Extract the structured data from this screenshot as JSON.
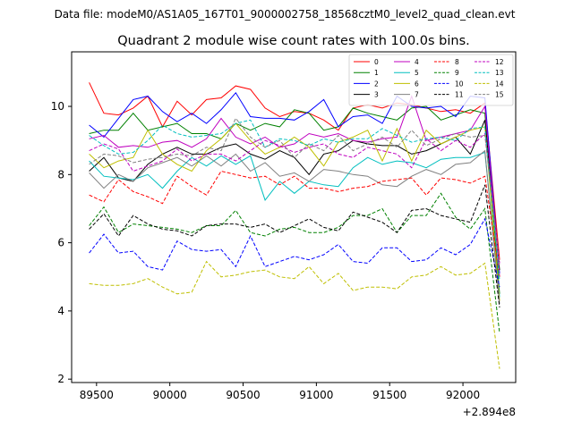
{
  "file_label": "Data file: modeM0/AS1A05_167T01_9000002758_18568cztM0_level2_quad_clean.evt",
  "chart_data": {
    "type": "line",
    "title": "Quadrant 2 module wise count rates with 100.0s bins.",
    "xlabel": "",
    "ylabel": "",
    "x_offset_label": "+2.894e8",
    "xlim": [
      89330,
      92360
    ],
    "ylim": [
      1.9,
      11.6
    ],
    "xticks": [
      89500,
      90000,
      90500,
      91000,
      91500,
      92000
    ],
    "yticks": [
      2,
      4,
      6,
      8,
      10
    ],
    "grid": false,
    "legend_position": "top-right",
    "x": [
      89450,
      89550,
      89650,
      89750,
      89850,
      89950,
      90050,
      90150,
      90250,
      90350,
      90450,
      90550,
      90650,
      90750,
      90850,
      90950,
      91050,
      91150,
      91250,
      91350,
      91450,
      91550,
      91650,
      91750,
      91850,
      91950,
      92050,
      92150,
      92250
    ],
    "series": [
      {
        "name": "0",
        "color": "#ff0000",
        "dash": "solid",
        "values": [
          10.7,
          9.8,
          9.75,
          9.95,
          10.3,
          9.4,
          10.15,
          9.75,
          10.2,
          10.25,
          10.6,
          10.5,
          9.95,
          9.7,
          9.85,
          9.8,
          9.6,
          9.3,
          9.95,
          10.05,
          9.95,
          10.1,
          10.05,
          9.95,
          9.85,
          9.9,
          9.8,
          10.1,
          5.5
        ]
      },
      {
        "name": "1",
        "color": "#008000",
        "dash": "solid",
        "values": [
          9.2,
          9.3,
          9.3,
          9.8,
          9.3,
          9.4,
          9.5,
          9.2,
          9.2,
          9.05,
          9.5,
          9.3,
          9.5,
          9.4,
          9.9,
          9.8,
          9.3,
          9.4,
          9.95,
          9.8,
          9.7,
          9.6,
          9.95,
          10.0,
          9.6,
          9.75,
          9.9,
          9.8,
          4.5
        ]
      },
      {
        "name": "2",
        "color": "#0000ff",
        "dash": "solid",
        "values": [
          9.45,
          9.1,
          9.65,
          10.2,
          10.3,
          9.85,
          9.55,
          9.8,
          9.5,
          9.9,
          10.4,
          9.7,
          9.65,
          9.65,
          9.6,
          9.85,
          10.2,
          9.4,
          9.7,
          9.75,
          9.5,
          10.3,
          10.0,
          9.95,
          10.0,
          9.7,
          10.3,
          10.25,
          5.1
        ]
      },
      {
        "name": "3",
        "color": "#000000",
        "dash": "solid",
        "values": [
          8.1,
          8.5,
          7.9,
          7.8,
          8.3,
          8.6,
          8.8,
          8.6,
          8.6,
          8.8,
          8.9,
          8.6,
          8.45,
          8.7,
          8.5,
          8.0,
          8.6,
          8.7,
          9.0,
          8.9,
          8.85,
          8.85,
          8.6,
          8.7,
          8.9,
          9.1,
          8.6,
          9.6,
          5.2
        ]
      },
      {
        "name": "4",
        "color": "#bf00bf",
        "dash": "solid",
        "values": [
          9.05,
          9.15,
          8.8,
          8.85,
          8.8,
          8.95,
          9.0,
          8.8,
          9.05,
          9.65,
          9.1,
          8.9,
          9.1,
          8.8,
          8.9,
          9.2,
          9.1,
          9.2,
          9.0,
          8.95,
          9.05,
          9.1,
          10.3,
          9.0,
          9.1,
          9.2,
          9.3,
          10.0,
          5.0
        ]
      },
      {
        "name": "5",
        "color": "#00bfbf",
        "dash": "solid",
        "values": [
          8.4,
          7.95,
          7.9,
          7.85,
          8.0,
          7.6,
          8.1,
          8.5,
          8.25,
          8.55,
          8.3,
          8.55,
          7.25,
          7.8,
          7.45,
          7.8,
          7.7,
          7.65,
          8.2,
          8.5,
          8.3,
          8.4,
          8.35,
          8.2,
          8.45,
          8.5,
          8.5,
          8.65,
          4.4
        ]
      },
      {
        "name": "6",
        "color": "#bfbf00",
        "dash": "solid",
        "values": [
          8.6,
          8.2,
          8.4,
          8.5,
          9.3,
          8.6,
          8.3,
          8.1,
          8.7,
          9.05,
          9.5,
          9.0,
          8.6,
          8.8,
          9.1,
          8.8,
          8.25,
          8.95,
          9.1,
          9.3,
          8.4,
          9.35,
          8.4,
          9.3,
          8.9,
          9.1,
          9.3,
          9.4,
          4.3
        ]
      },
      {
        "name": "7",
        "color": "#808080",
        "dash": "solid",
        "values": [
          8.05,
          7.6,
          8.0,
          7.8,
          8.2,
          8.35,
          8.5,
          8.25,
          8.55,
          8.25,
          8.6,
          8.1,
          8.35,
          7.95,
          8.05,
          7.8,
          8.15,
          8.1,
          8.0,
          7.95,
          7.7,
          7.65,
          7.95,
          8.15,
          8.0,
          8.3,
          8.35,
          8.7,
          4.2
        ]
      },
      {
        "name": "8",
        "color": "#ff0000",
        "dash": "dashed",
        "values": [
          7.4,
          7.2,
          7.85,
          7.5,
          7.35,
          7.15,
          7.95,
          7.65,
          7.4,
          8.1,
          8.0,
          7.9,
          7.95,
          7.7,
          7.95,
          7.6,
          7.6,
          7.5,
          7.6,
          7.65,
          7.8,
          7.85,
          7.9,
          7.4,
          7.9,
          7.85,
          7.75,
          7.95,
          5.0
        ]
      },
      {
        "name": "9",
        "color": "#008000",
        "dash": "dashed",
        "values": [
          6.5,
          7.05,
          6.3,
          6.55,
          6.5,
          6.45,
          6.4,
          6.3,
          6.5,
          6.5,
          6.95,
          6.3,
          6.2,
          6.4,
          6.45,
          6.3,
          6.3,
          6.45,
          6.8,
          6.8,
          7.0,
          6.3,
          6.8,
          6.8,
          7.45,
          6.75,
          6.4,
          7.0,
          3.35
        ]
      },
      {
        "name": "10",
        "color": "#0000ff",
        "dash": "dashed",
        "values": [
          5.7,
          6.25,
          5.7,
          5.75,
          5.3,
          5.2,
          6.05,
          5.8,
          5.75,
          5.8,
          5.3,
          6.2,
          5.3,
          5.45,
          5.6,
          5.5,
          5.65,
          5.95,
          5.45,
          5.4,
          5.85,
          5.85,
          5.45,
          5.5,
          5.85,
          5.65,
          5.95,
          6.7,
          4.7
        ]
      },
      {
        "name": "11",
        "color": "#000000",
        "dash": "dashed",
        "values": [
          6.4,
          6.85,
          6.2,
          6.8,
          6.55,
          6.4,
          6.35,
          6.2,
          6.5,
          6.55,
          6.55,
          6.45,
          6.55,
          6.3,
          6.5,
          6.7,
          6.45,
          6.35,
          6.9,
          6.75,
          6.6,
          6.3,
          6.95,
          7.0,
          6.8,
          6.7,
          6.6,
          7.7,
          4.1
        ]
      },
      {
        "name": "12",
        "color": "#bf00bf",
        "dash": "dashed",
        "values": [
          8.7,
          8.9,
          8.75,
          8.1,
          8.25,
          8.4,
          8.75,
          8.4,
          8.6,
          8.6,
          8.4,
          8.7,
          9.0,
          8.85,
          8.65,
          8.8,
          8.9,
          8.6,
          8.5,
          8.8,
          8.7,
          8.6,
          8.2,
          9.05,
          8.7,
          9.0,
          8.8,
          9.2,
          5.4
        ]
      },
      {
        "name": "13",
        "color": "#00bfbf",
        "dash": "dashed",
        "values": [
          9.15,
          8.85,
          8.6,
          8.65,
          9.0,
          9.45,
          9.2,
          9.1,
          9.15,
          9.2,
          9.5,
          9.6,
          8.8,
          9.05,
          9.0,
          8.85,
          9.05,
          8.95,
          9.05,
          9.05,
          9.35,
          9.15,
          8.95,
          9.05,
          9.1,
          9.0,
          9.35,
          9.4,
          4.9
        ]
      },
      {
        "name": "14",
        "color": "#bfbf00",
        "dash": "dashed",
        "values": [
          4.8,
          4.75,
          4.75,
          4.8,
          4.95,
          4.7,
          4.5,
          4.55,
          5.45,
          5.0,
          5.05,
          5.15,
          5.2,
          5.0,
          4.95,
          5.3,
          4.8,
          5.1,
          4.6,
          4.7,
          4.7,
          4.65,
          5.0,
          5.05,
          5.3,
          5.05,
          5.1,
          5.4,
          2.3
        ]
      },
      {
        "name": "15",
        "color": "#808080",
        "dash": "dashed",
        "values": [
          8.3,
          8.6,
          8.55,
          8.35,
          8.45,
          8.5,
          8.6,
          8.55,
          8.8,
          8.7,
          9.65,
          9.1,
          8.8,
          9.0,
          8.5,
          8.9,
          8.7,
          9.15,
          8.7,
          8.9,
          9.1,
          8.8,
          9.3,
          8.85,
          9.05,
          9.2,
          9.1,
          9.15,
          5.3
        ]
      }
    ]
  }
}
